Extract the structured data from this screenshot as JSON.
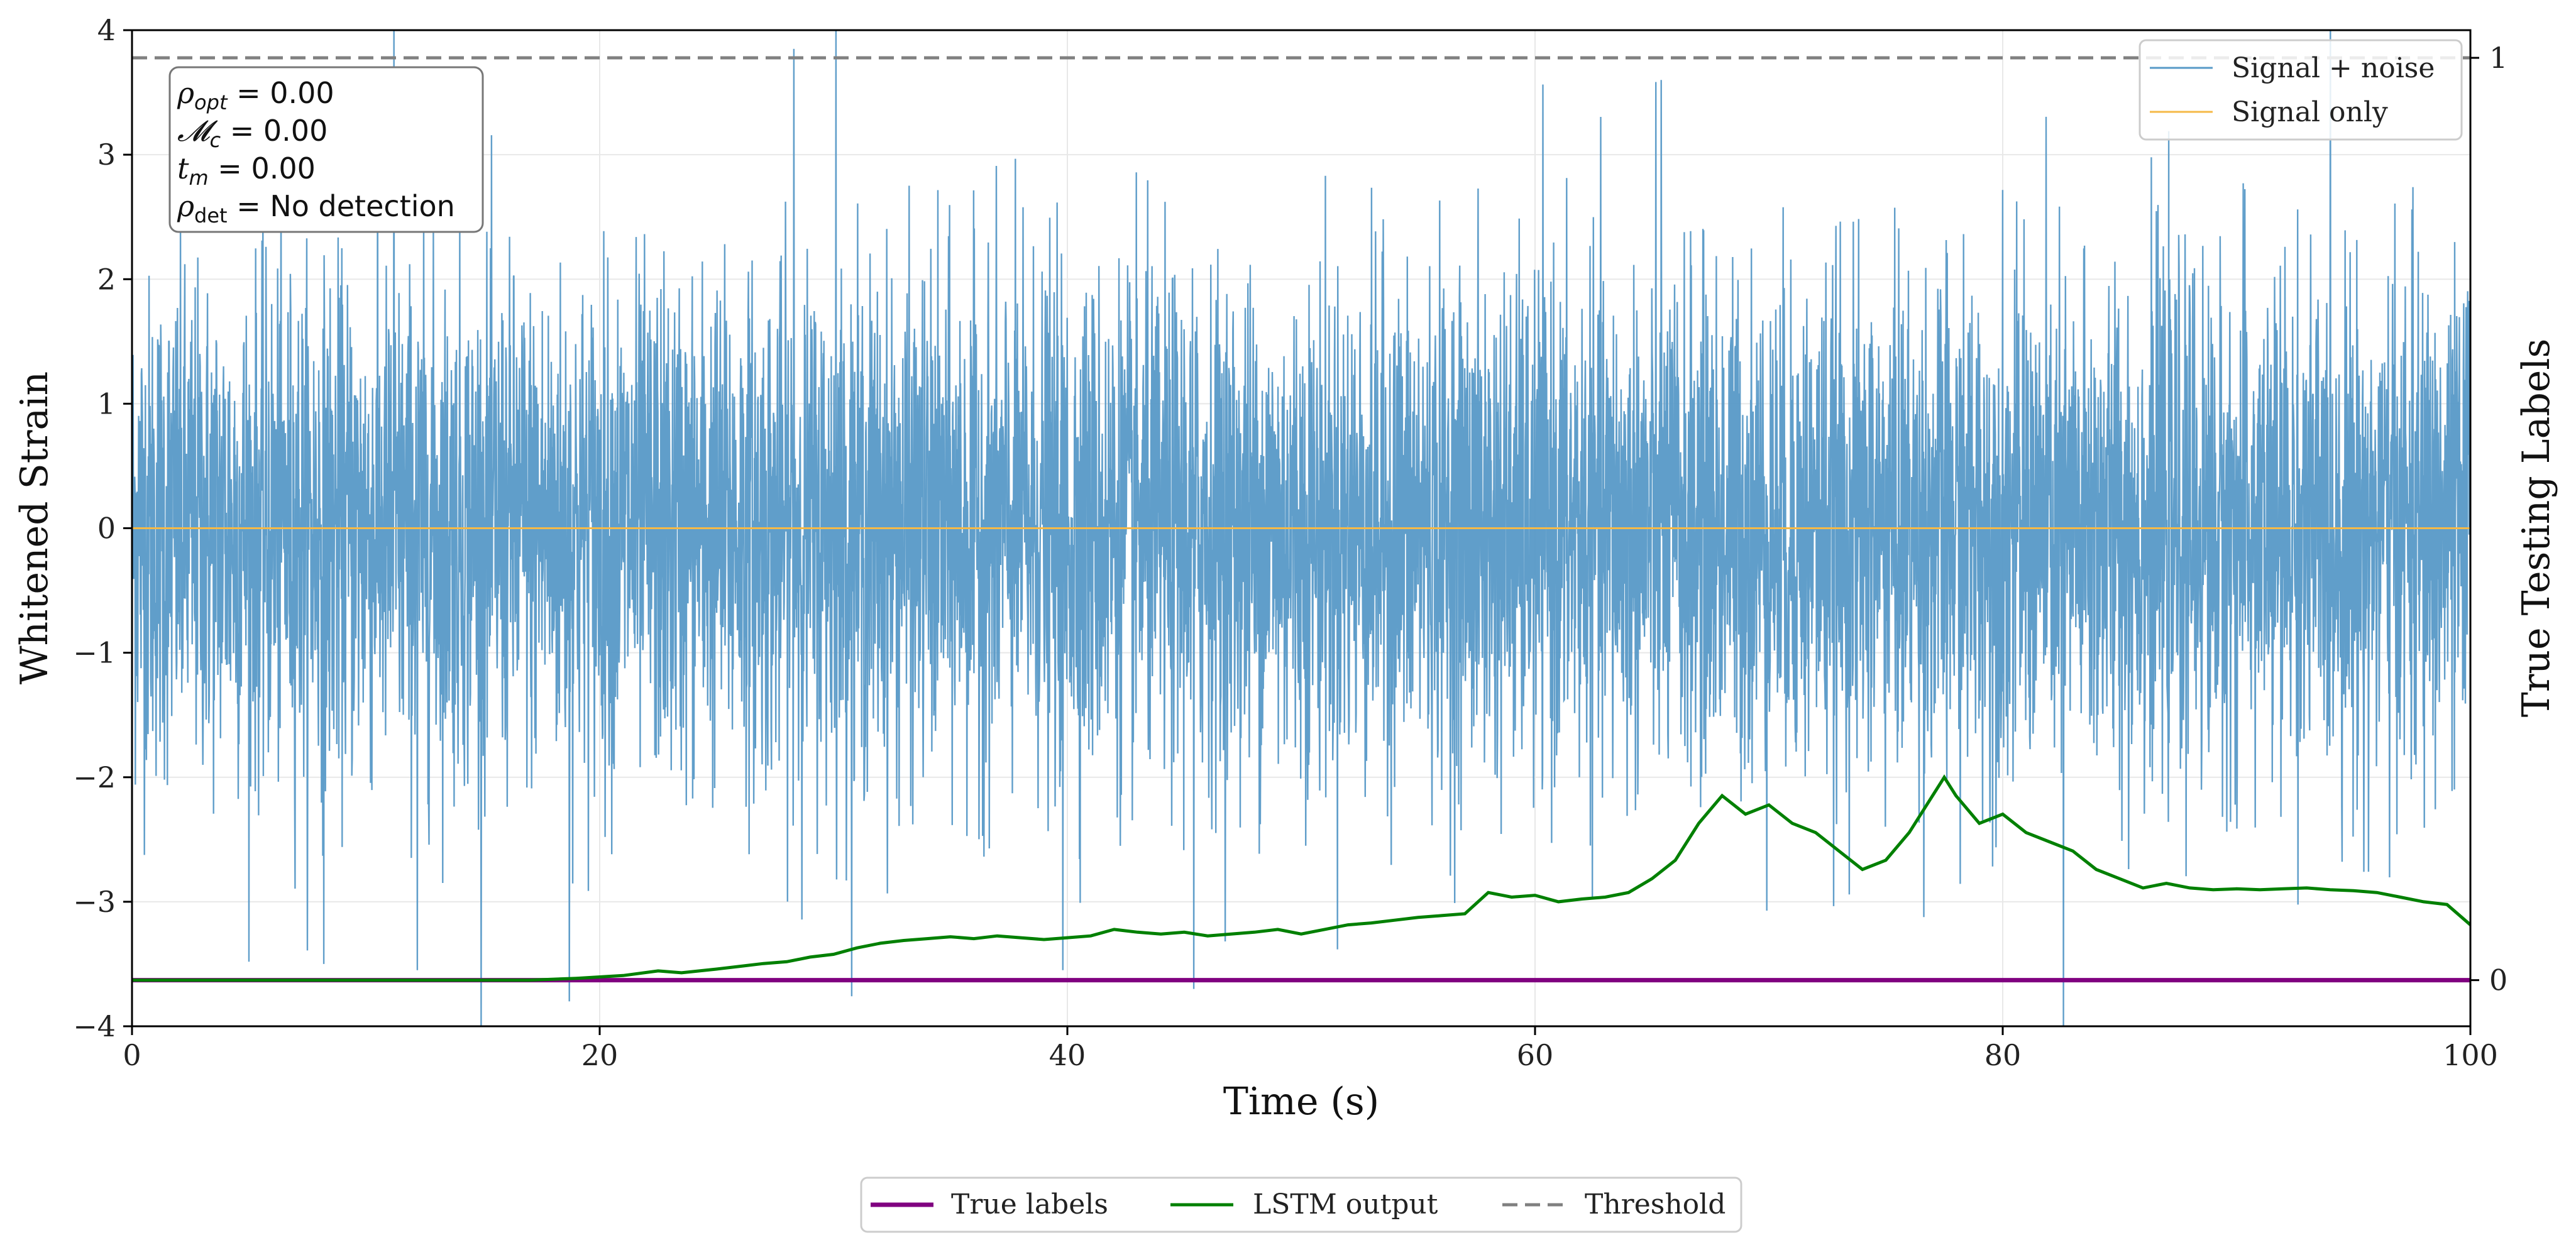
{
  "colors": {
    "noise": "#5799c7",
    "signal": "#f5b947",
    "true_labels": "#800080",
    "lstm": "#008000",
    "threshold": "#808080"
  },
  "chart_data": {
    "type": "line",
    "title": "",
    "xlabel": "Time (s)",
    "ylabel": "Whitened Strain",
    "y2label": "True Testing Labels",
    "xlim": [
      0,
      100
    ],
    "ylim": [
      -4,
      4
    ],
    "y2lim": [
      -0.05,
      1.03
    ],
    "xticks": [
      "0",
      "20",
      "40",
      "60",
      "80",
      "100"
    ],
    "yticks": [
      "−4",
      "−3",
      "−2",
      "−1",
      "0",
      "1",
      "2",
      "3",
      "4"
    ],
    "y2ticks": [
      "0",
      "1"
    ],
    "grid": true,
    "annotations": {
      "rho_opt": "= 0.00",
      "mc": "= 0.00",
      "tm": "= 0.00",
      "rho_det": "= No detection"
    },
    "legend_top": {
      "placement": "top-right",
      "entries": [
        "Signal + noise",
        "Signal only"
      ]
    },
    "legend_bottom": {
      "placement": "bottom-center",
      "entries": [
        "True labels",
        "LSTM output",
        "Threshold"
      ]
    },
    "series": [
      {
        "name": "Signal + noise",
        "axis": "left",
        "description_values": "white noise, std ~1.0, range approx -4 to 4",
        "noise_std": 1.0,
        "spikes": [
          [
            11.2,
            4.0
          ],
          [
            28.3,
            3.85
          ],
          [
            30.1,
            4.0
          ],
          [
            65.4,
            3.6
          ],
          [
            82.6,
            -4.0
          ],
          [
            18.7,
            -3.8
          ],
          [
            45.4,
            -3.7
          ],
          [
            39.8,
            -3.55
          ],
          [
            12.2,
            -3.55
          ],
          [
            8.2,
            -3.5
          ]
        ]
      },
      {
        "name": "Signal only",
        "axis": "left",
        "x": [
          0,
          100
        ],
        "y": [
          0,
          0
        ]
      },
      {
        "name": "True labels",
        "axis": "right",
        "x": [
          0,
          100
        ],
        "y": [
          0,
          0
        ]
      },
      {
        "name": "LSTM output",
        "axis": "right",
        "x": [
          0,
          10,
          17,
          19,
          21,
          22.5,
          23.5,
          25,
          26,
          27,
          28,
          29,
          30,
          31,
          32,
          33,
          34,
          35,
          36,
          37,
          38,
          39,
          40,
          41,
          42,
          43,
          44,
          45,
          46,
          47,
          48,
          49,
          50,
          51,
          52,
          53,
          54,
          55,
          56,
          57,
          58,
          59,
          60,
          61,
          62,
          63,
          64,
          65,
          66,
          67,
          68,
          69,
          70,
          71,
          72,
          73,
          74,
          75,
          76,
          77,
          77.5,
          78,
          79,
          80,
          81,
          82,
          83,
          84,
          85,
          86,
          87,
          88,
          89,
          90,
          91,
          92,
          93,
          94,
          95,
          96,
          97,
          98,
          99,
          100
        ],
        "y": [
          0.0,
          0.0,
          0.0,
          0.002,
          0.005,
          0.01,
          0.008,
          0.012,
          0.015,
          0.018,
          0.02,
          0.025,
          0.028,
          0.035,
          0.04,
          0.043,
          0.045,
          0.047,
          0.045,
          0.048,
          0.046,
          0.044,
          0.046,
          0.048,
          0.055,
          0.052,
          0.05,
          0.052,
          0.048,
          0.05,
          0.052,
          0.055,
          0.05,
          0.055,
          0.06,
          0.062,
          0.065,
          0.068,
          0.07,
          0.072,
          0.095,
          0.09,
          0.092,
          0.085,
          0.088,
          0.09,
          0.095,
          0.11,
          0.13,
          0.17,
          0.2,
          0.18,
          0.19,
          0.17,
          0.16,
          0.14,
          0.12,
          0.13,
          0.16,
          0.2,
          0.22,
          0.2,
          0.17,
          0.18,
          0.16,
          0.15,
          0.14,
          0.12,
          0.11,
          0.1,
          0.105,
          0.1,
          0.098,
          0.099,
          0.098,
          0.099,
          0.1,
          0.098,
          0.097,
          0.095,
          0.09,
          0.085,
          0.082,
          0.06
        ]
      },
      {
        "name": "Threshold",
        "axis": "right",
        "x": [
          0,
          100
        ],
        "y": [
          1,
          1
        ]
      }
    ]
  }
}
